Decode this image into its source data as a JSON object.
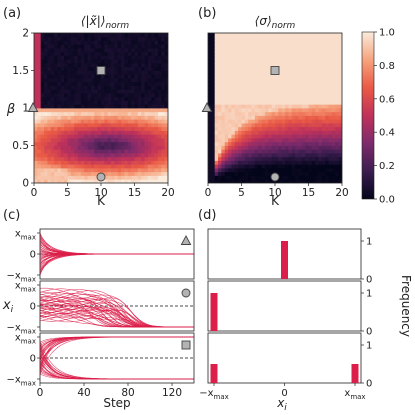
{
  "panel_letters": [
    "(a)",
    "(b)",
    "(c)",
    "(d)"
  ],
  "colorbar": {
    "ticks": [
      "1.0",
      "0.8",
      "0.6",
      "0.4",
      "0.2",
      "0.0"
    ],
    "stops": [
      "#03051a",
      "#3b1d4f",
      "#7d2a6b",
      "#c0325a",
      "#ea5a45",
      "#f6a47e",
      "#faebdd"
    ]
  },
  "series_color": "#dc1f4a",
  "chart_data": [
    {
      "type": "heatmap",
      "id": "a",
      "title_main": "⟨|x̃|⟩",
      "title_sub": "norm",
      "xlabel": "K",
      "ylabel": "β",
      "xlim": [
        0,
        20
      ],
      "ylim": [
        0,
        2
      ],
      "xticks": [
        "0",
        "5",
        "10",
        "15",
        "20"
      ],
      "yticks": [
        "0",
        "0.5",
        "1",
        "1.5",
        "2"
      ],
      "markers": [
        {
          "shape": "triangle",
          "x": 0,
          "y": 1
        },
        {
          "shape": "square",
          "x": 10,
          "y": 1.5
        },
        {
          "shape": "circle",
          "x": 10,
          "y": 0
        }
      ]
    },
    {
      "type": "heatmap",
      "id": "b",
      "title_main": "⟨σ⟩",
      "title_sub": "norm",
      "xlabel": "K",
      "ylabel": "",
      "xlim": [
        0,
        20
      ],
      "ylim": [
        0,
        2
      ],
      "xticks": [
        "0",
        "5",
        "10",
        "15",
        "20"
      ],
      "yticks": [],
      "markers": [
        {
          "shape": "triangle",
          "x": 0,
          "y": 1
        },
        {
          "shape": "square",
          "x": 10,
          "y": 1.5
        },
        {
          "shape": "circle",
          "x": 10,
          "y": 0
        }
      ]
    },
    {
      "type": "line",
      "id": "c",
      "xlabel": "Step",
      "ylabel": "x",
      "ylabel_sub": "i",
      "xlim": [
        0,
        140
      ],
      "xticks": [
        "0",
        "40",
        "80",
        "120"
      ],
      "ytick_top": "x",
      "ytick_top_sub": "max",
      "ytick_mid": "0",
      "ytick_bottom": "−x",
      "ytick_bottom_sub": "max",
      "rows": [
        {
          "marker": "triangle",
          "description": "all trajectories converge to 0 by step ~25"
        },
        {
          "marker": "circle",
          "description": "trajectories spread then converge to −x_max between steps ~40 and ~90"
        },
        {
          "marker": "square",
          "description": "trajectories split between +x_max and −x_max by step ~25"
        }
      ]
    },
    {
      "type": "bar",
      "id": "d",
      "xlabel": "x",
      "xlabel_sub": "i",
      "ylabel": "Frequency",
      "xticks": [
        {
          "main": "−x",
          "sub": "max",
          "pos": -1
        },
        {
          "main": "0",
          "sub": "",
          "pos": 0
        },
        {
          "main": "x",
          "sub": "max",
          "pos": 1
        }
      ],
      "yticks": [
        "0",
        "1"
      ],
      "rows": [
        {
          "bars": [
            {
              "x": 0.0,
              "value": 1.0
            }
          ]
        },
        {
          "bars": [
            {
              "x": -1.0,
              "value": 1.0
            }
          ]
        },
        {
          "bars": [
            {
              "x": -1.0,
              "value": 0.5
            },
            {
              "x": 1.0,
              "value": 0.5
            }
          ]
        }
      ]
    }
  ]
}
